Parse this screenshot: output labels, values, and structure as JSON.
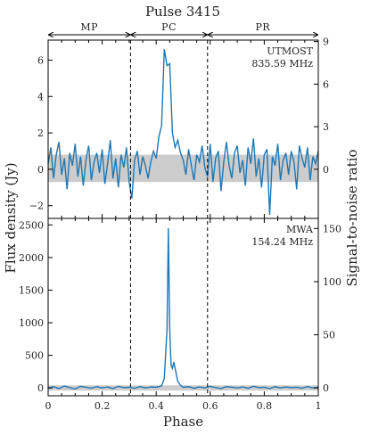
{
  "chart_data": [
    {
      "type": "line",
      "panel": "top",
      "title": "Pulse 3415",
      "regions": [
        {
          "label": "MP",
          "from": 0.0,
          "to": 0.305
        },
        {
          "label": "PC",
          "from": 0.305,
          "to": 0.59
        },
        {
          "label": "PR",
          "from": 0.59,
          "to": 1.0
        }
      ],
      "annotation": [
        "UTMOST",
        "835.59 MHz"
      ],
      "ylabel_left": "Flux density (Jy)",
      "ylabel_right": "Signal-to-noise ratio",
      "xlim": [
        0,
        1
      ],
      "ylim": [
        -2.7,
        7.1
      ],
      "yticks_left": [
        -2,
        0,
        2,
        4,
        6
      ],
      "yticks_right": [
        0,
        3,
        6,
        9
      ],
      "right_to_left_scale": 0.78,
      "noise_band": [
        -0.7,
        0.8
      ],
      "series": [
        {
          "color": "#1f77b4",
          "x": [
            0.0,
            0.01,
            0.02,
            0.03,
            0.04,
            0.05,
            0.06,
            0.07,
            0.08,
            0.09,
            0.1,
            0.11,
            0.12,
            0.13,
            0.14,
            0.15,
            0.16,
            0.17,
            0.18,
            0.19,
            0.2,
            0.21,
            0.22,
            0.23,
            0.24,
            0.25,
            0.26,
            0.27,
            0.28,
            0.29,
            0.3,
            0.31,
            0.32,
            0.33,
            0.34,
            0.35,
            0.36,
            0.37,
            0.38,
            0.39,
            0.4,
            0.41,
            0.42,
            0.43,
            0.44,
            0.45,
            0.46,
            0.47,
            0.48,
            0.49,
            0.5,
            0.51,
            0.52,
            0.53,
            0.54,
            0.55,
            0.56,
            0.57,
            0.58,
            0.59,
            0.6,
            0.61,
            0.62,
            0.63,
            0.64,
            0.65,
            0.66,
            0.67,
            0.68,
            0.69,
            0.7,
            0.71,
            0.72,
            0.73,
            0.74,
            0.75,
            0.76,
            0.77,
            0.78,
            0.79,
            0.8,
            0.81,
            0.82,
            0.83,
            0.84,
            0.85,
            0.86,
            0.87,
            0.88,
            0.89,
            0.9,
            0.91,
            0.92,
            0.93,
            0.94,
            0.95,
            0.96,
            0.97,
            0.98,
            0.99,
            1.0
          ],
          "y": [
            0.3,
            1.2,
            -0.5,
            0.8,
            1.5,
            -0.3,
            0.6,
            -1.1,
            0.9,
            0.2,
            1.4,
            -0.4,
            0.7,
            -0.9,
            0.5,
            1.3,
            -0.6,
            0.4,
            0.9,
            -0.2,
            1.1,
            -0.8,
            0.3,
            1.6,
            -0.5,
            0.6,
            -1.0,
            0.8,
            0.1,
            1.2,
            -0.7,
            -1.6,
            0.5,
            1.0,
            -0.3,
            0.7,
            0.2,
            -0.5,
            0.4,
            1.0,
            0.6,
            1.8,
            2.4,
            6.6,
            5.7,
            5.8,
            2.0,
            1.2,
            1.6,
            0.9,
            0.5,
            -0.3,
            1.1,
            0.2,
            -0.6,
            0.8,
            0.4,
            1.3,
            0.1,
            -0.4,
            1.4,
            -0.7,
            0.6,
            1.0,
            -1.2,
            0.4,
            1.5,
            0.2,
            -0.5,
            0.9,
            1.3,
            -0.2,
            0.5,
            -0.9,
            1.2,
            0.3,
            1.7,
            -0.4,
            0.6,
            -1.0,
            0.8,
            1.1,
            -2.5,
            0.7,
            0.2,
            1.4,
            -0.6,
            0.5,
            0.9,
            -0.3,
            1.0,
            0.4,
            -1.1,
            1.3,
            0.6,
            0.1,
            1.2,
            -0.6,
            0.7,
            0.3,
            1.0
          ]
        }
      ]
    },
    {
      "type": "line",
      "panel": "bottom",
      "annotation": [
        "MWA",
        "154.24 MHz"
      ],
      "xlabel": "Phase",
      "ylabel_left": "Flux density (Jy)",
      "ylabel_right": "Signal-to-noise ratio",
      "xlim": [
        0,
        1
      ],
      "ylim": [
        -120,
        2600
      ],
      "xticks": [
        0,
        0.2,
        0.4,
        0.6,
        0.8,
        1
      ],
      "xtick_labels": [
        "0",
        "0.2",
        "0.4",
        "0.6",
        "0.8",
        "1"
      ],
      "yticks_left": [
        0,
        500,
        1000,
        1500,
        2000,
        2500
      ],
      "yticks_right": [
        0,
        50,
        100,
        150
      ],
      "right_to_left_scale": 16.3,
      "noise_band": [
        -40,
        40
      ],
      "series": [
        {
          "color": "#1f77b4",
          "x": [
            0.0,
            0.02,
            0.04,
            0.06,
            0.08,
            0.1,
            0.12,
            0.14,
            0.16,
            0.18,
            0.2,
            0.22,
            0.24,
            0.26,
            0.28,
            0.3,
            0.32,
            0.34,
            0.36,
            0.38,
            0.4,
            0.42,
            0.43,
            0.44,
            0.445,
            0.45,
            0.455,
            0.46,
            0.465,
            0.47,
            0.48,
            0.49,
            0.5,
            0.52,
            0.54,
            0.56,
            0.58,
            0.6,
            0.62,
            0.64,
            0.66,
            0.68,
            0.7,
            0.72,
            0.74,
            0.76,
            0.78,
            0.8,
            0.82,
            0.84,
            0.86,
            0.88,
            0.9,
            0.92,
            0.94,
            0.96,
            0.98,
            1.0
          ],
          "y": [
            0,
            20,
            -10,
            30,
            5,
            -15,
            25,
            10,
            -5,
            20,
            0,
            15,
            -10,
            25,
            5,
            10,
            -5,
            20,
            0,
            15,
            10,
            30,
            150,
            900,
            2450,
            900,
            350,
            300,
            400,
            300,
            100,
            40,
            10,
            20,
            -5,
            15,
            0,
            25,
            5,
            -10,
            20,
            10,
            0,
            15,
            -5,
            25,
            5,
            10,
            -10,
            20,
            0,
            15,
            5,
            10,
            -5,
            20,
            0,
            10
          ]
        }
      ]
    }
  ]
}
